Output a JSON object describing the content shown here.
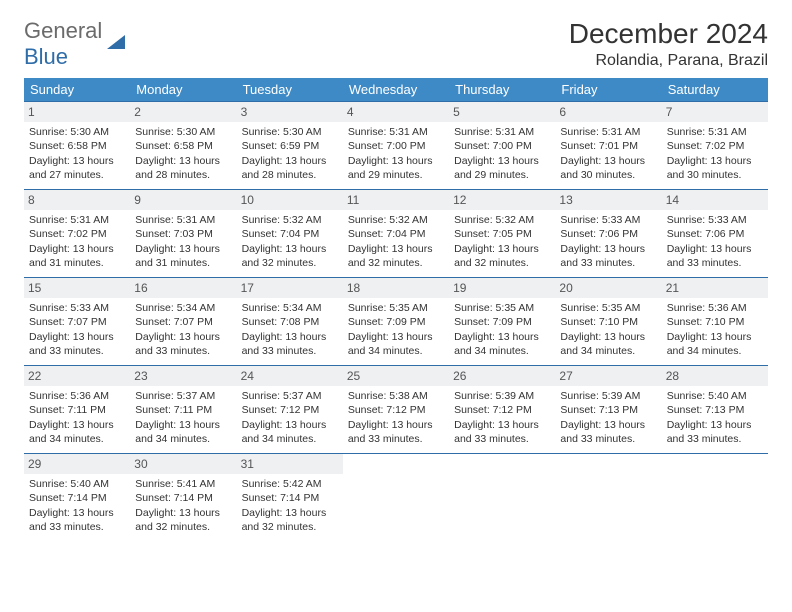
{
  "logo": {
    "part1": "General",
    "part2": "Blue"
  },
  "title": "December 2024",
  "subtitle": "Rolandia, Parana, Brazil",
  "colors": {
    "header_bg": "#3e8ac6",
    "header_fg": "#ffffff",
    "rule": "#2f6da8",
    "daynum_bg": "#eef0f2",
    "logo_gray": "#6b6b6b",
    "logo_blue": "#2f6da8"
  },
  "day_headers": [
    "Sunday",
    "Monday",
    "Tuesday",
    "Wednesday",
    "Thursday",
    "Friday",
    "Saturday"
  ],
  "weeks": [
    [
      {
        "n": "1",
        "sr": "5:30 AM",
        "ss": "6:58 PM",
        "dl": "13 hours and 27 minutes."
      },
      {
        "n": "2",
        "sr": "5:30 AM",
        "ss": "6:58 PM",
        "dl": "13 hours and 28 minutes."
      },
      {
        "n": "3",
        "sr": "5:30 AM",
        "ss": "6:59 PM",
        "dl": "13 hours and 28 minutes."
      },
      {
        "n": "4",
        "sr": "5:31 AM",
        "ss": "7:00 PM",
        "dl": "13 hours and 29 minutes."
      },
      {
        "n": "5",
        "sr": "5:31 AM",
        "ss": "7:00 PM",
        "dl": "13 hours and 29 minutes."
      },
      {
        "n": "6",
        "sr": "5:31 AM",
        "ss": "7:01 PM",
        "dl": "13 hours and 30 minutes."
      },
      {
        "n": "7",
        "sr": "5:31 AM",
        "ss": "7:02 PM",
        "dl": "13 hours and 30 minutes."
      }
    ],
    [
      {
        "n": "8",
        "sr": "5:31 AM",
        "ss": "7:02 PM",
        "dl": "13 hours and 31 minutes."
      },
      {
        "n": "9",
        "sr": "5:31 AM",
        "ss": "7:03 PM",
        "dl": "13 hours and 31 minutes."
      },
      {
        "n": "10",
        "sr": "5:32 AM",
        "ss": "7:04 PM",
        "dl": "13 hours and 32 minutes."
      },
      {
        "n": "11",
        "sr": "5:32 AM",
        "ss": "7:04 PM",
        "dl": "13 hours and 32 minutes."
      },
      {
        "n": "12",
        "sr": "5:32 AM",
        "ss": "7:05 PM",
        "dl": "13 hours and 32 minutes."
      },
      {
        "n": "13",
        "sr": "5:33 AM",
        "ss": "7:06 PM",
        "dl": "13 hours and 33 minutes."
      },
      {
        "n": "14",
        "sr": "5:33 AM",
        "ss": "7:06 PM",
        "dl": "13 hours and 33 minutes."
      }
    ],
    [
      {
        "n": "15",
        "sr": "5:33 AM",
        "ss": "7:07 PM",
        "dl": "13 hours and 33 minutes."
      },
      {
        "n": "16",
        "sr": "5:34 AM",
        "ss": "7:07 PM",
        "dl": "13 hours and 33 minutes."
      },
      {
        "n": "17",
        "sr": "5:34 AM",
        "ss": "7:08 PM",
        "dl": "13 hours and 33 minutes."
      },
      {
        "n": "18",
        "sr": "5:35 AM",
        "ss": "7:09 PM",
        "dl": "13 hours and 34 minutes."
      },
      {
        "n": "19",
        "sr": "5:35 AM",
        "ss": "7:09 PM",
        "dl": "13 hours and 34 minutes."
      },
      {
        "n": "20",
        "sr": "5:35 AM",
        "ss": "7:10 PM",
        "dl": "13 hours and 34 minutes."
      },
      {
        "n": "21",
        "sr": "5:36 AM",
        "ss": "7:10 PM",
        "dl": "13 hours and 34 minutes."
      }
    ],
    [
      {
        "n": "22",
        "sr": "5:36 AM",
        "ss": "7:11 PM",
        "dl": "13 hours and 34 minutes."
      },
      {
        "n": "23",
        "sr": "5:37 AM",
        "ss": "7:11 PM",
        "dl": "13 hours and 34 minutes."
      },
      {
        "n": "24",
        "sr": "5:37 AM",
        "ss": "7:12 PM",
        "dl": "13 hours and 34 minutes."
      },
      {
        "n": "25",
        "sr": "5:38 AM",
        "ss": "7:12 PM",
        "dl": "13 hours and 33 minutes."
      },
      {
        "n": "26",
        "sr": "5:39 AM",
        "ss": "7:12 PM",
        "dl": "13 hours and 33 minutes."
      },
      {
        "n": "27",
        "sr": "5:39 AM",
        "ss": "7:13 PM",
        "dl": "13 hours and 33 minutes."
      },
      {
        "n": "28",
        "sr": "5:40 AM",
        "ss": "7:13 PM",
        "dl": "13 hours and 33 minutes."
      }
    ],
    [
      {
        "n": "29",
        "sr": "5:40 AM",
        "ss": "7:14 PM",
        "dl": "13 hours and 33 minutes."
      },
      {
        "n": "30",
        "sr": "5:41 AM",
        "ss": "7:14 PM",
        "dl": "13 hours and 32 minutes."
      },
      {
        "n": "31",
        "sr": "5:42 AM",
        "ss": "7:14 PM",
        "dl": "13 hours and 32 minutes."
      },
      null,
      null,
      null,
      null
    ]
  ],
  "labels": {
    "sunrise": "Sunrise: ",
    "sunset": "Sunset: ",
    "daylight": "Daylight: "
  }
}
